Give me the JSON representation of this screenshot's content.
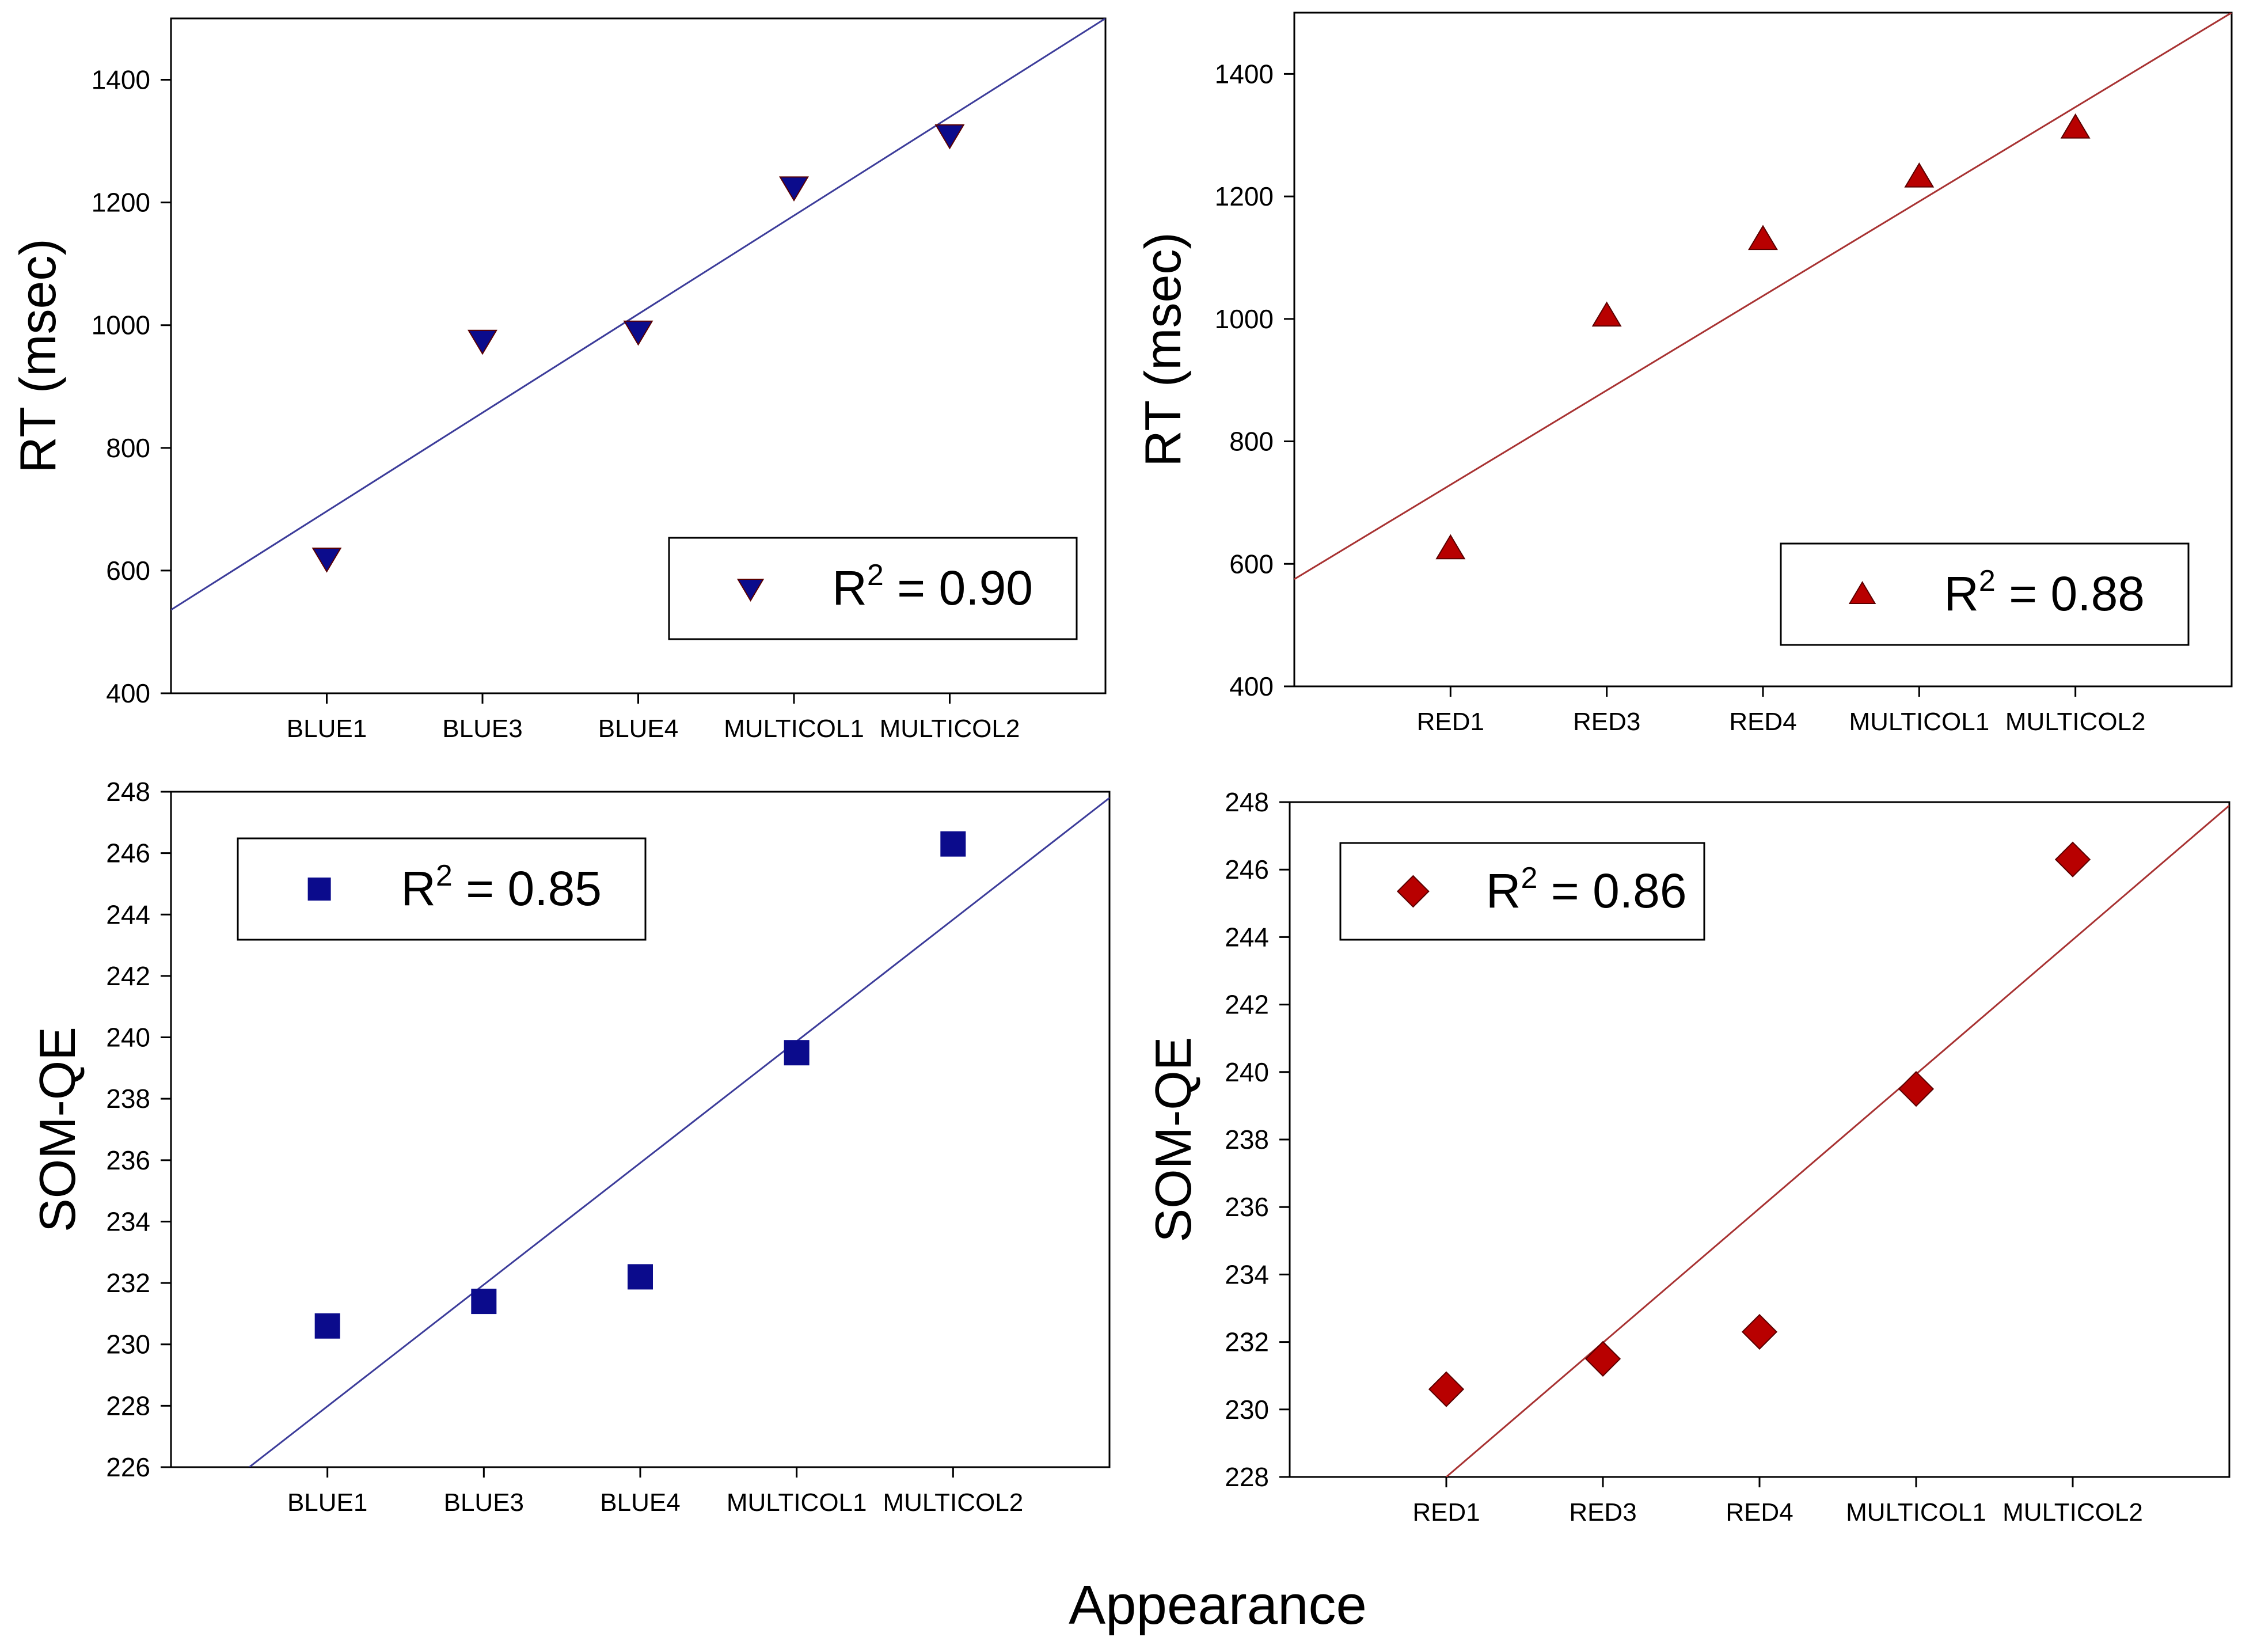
{
  "figure": {
    "xlabel": "Appearance"
  },
  "chart_data": [
    {
      "id": "rt-blue",
      "type": "scatter",
      "title": "",
      "xlabel": "",
      "ylabel": "RT (msec)",
      "categories": [
        "BLUE1",
        "BLUE3",
        "BLUE4",
        "MULTICOL1",
        "MULTICOL2"
      ],
      "ylim": [
        400,
        1500
      ],
      "yticks": [
        400,
        600,
        800,
        1000,
        1200,
        1400
      ],
      "marker": "triangle-down",
      "color": "#0b0b8c",
      "line_color": "#3c3c9a",
      "series": [
        {
          "name": "RT",
          "values": [
            620,
            975,
            990,
            1225,
            1310
          ]
        }
      ],
      "fit": {
        "x0": 0,
        "y0": 536,
        "x1": 6,
        "y1": 1500
      },
      "legend": {
        "r_prefix": "R",
        "r_exp": "2",
        "r_value": " = 0.90",
        "position": "bottom-right"
      }
    },
    {
      "id": "rt-red",
      "type": "scatter",
      "title": "",
      "xlabel": "",
      "ylabel": "RT (msec)",
      "categories": [
        "RED1",
        "RED3",
        "RED4",
        "MULTICOL1",
        "MULTICOL2"
      ],
      "ylim": [
        400,
        1500
      ],
      "yticks": [
        400,
        600,
        800,
        1000,
        1200,
        1400
      ],
      "marker": "triangle-up",
      "color": "#b80000",
      "line_color": "#a83232",
      "series": [
        {
          "name": "RT",
          "values": [
            625,
            1005,
            1130,
            1232,
            1312
          ]
        }
      ],
      "fit": {
        "x0": 0,
        "y0": 575,
        "x1": 6,
        "y1": 1500
      },
      "legend": {
        "r_prefix": "R",
        "r_exp": "2",
        "r_value": " = 0.88",
        "position": "bottom-right"
      }
    },
    {
      "id": "somqe-blue",
      "type": "scatter",
      "title": "",
      "xlabel": "",
      "ylabel": "SOM-QE",
      "categories": [
        "BLUE1",
        "BLUE3",
        "BLUE4",
        "MULTICOL1",
        "MULTICOL2"
      ],
      "ylim": [
        226,
        248
      ],
      "yticks": [
        226,
        228,
        230,
        232,
        234,
        236,
        238,
        240,
        242,
        244,
        246,
        248
      ],
      "marker": "square",
      "color": "#0b0b8c",
      "line_color": "#3c3c9a",
      "series": [
        {
          "name": "SOM-QE",
          "values": [
            230.6,
            231.4,
            232.2,
            239.5,
            246.3
          ]
        }
      ],
      "fit": {
        "x0": 0.5,
        "y0": 226,
        "x1": 6,
        "y1": 247.8
      },
      "legend": {
        "r_prefix": "R",
        "r_exp": "2",
        "r_value": " = 0.85",
        "position": "top-left"
      }
    },
    {
      "id": "somqe-red",
      "type": "scatter",
      "title": "",
      "xlabel": "",
      "ylabel": "SOM-QE",
      "categories": [
        "RED1",
        "RED3",
        "RED4",
        "MULTICOL1",
        "MULTICOL2"
      ],
      "ylim": [
        228,
        248
      ],
      "yticks": [
        228,
        230,
        232,
        234,
        236,
        238,
        240,
        242,
        244,
        246,
        248
      ],
      "marker": "diamond",
      "color": "#b80000",
      "line_color": "#a83232",
      "series": [
        {
          "name": "SOM-QE",
          "values": [
            230.6,
            231.5,
            232.3,
            239.5,
            246.3
          ]
        }
      ],
      "fit": {
        "x0": 1,
        "y0": 228,
        "x1": 6,
        "y1": 247.9
      },
      "legend": {
        "r_prefix": "R",
        "r_exp": "2",
        "r_value": " = 0.86",
        "position": "top-left"
      }
    }
  ]
}
